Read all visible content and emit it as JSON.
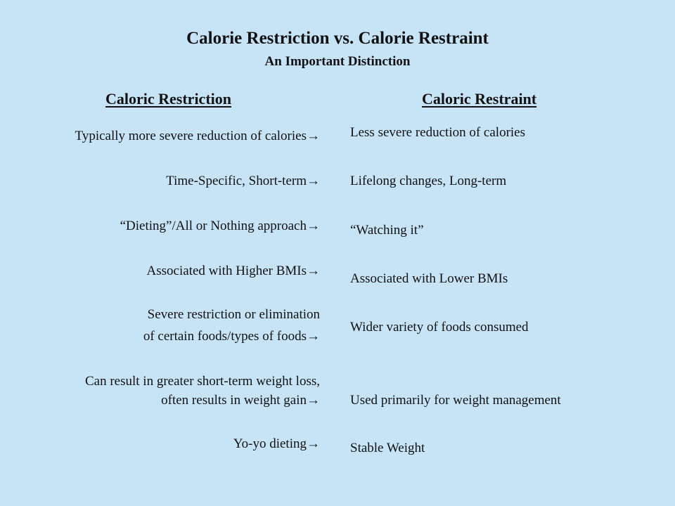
{
  "title": "Calorie Restriction vs. Calorie Restraint",
  "subtitle": "An Important Distinction",
  "columns": {
    "left_header": "Caloric Restriction",
    "right_header": "Caloric Restraint"
  },
  "left_items": [
    "Typically more severe reduction of calories→",
    "Time-Specific, Short-term→",
    "“Dieting”/All or Nothing approach→",
    "Associated with Higher BMIs→",
    "Severe restriction or elimination",
    "of certain foods/types of foods→",
    "Can result in greater short-term weight loss,",
    "often results in weight gain→",
    "Yo-yo dieting→"
  ],
  "right_items": [
    "Less severe reduction of calories",
    "Lifelong changes, Long-term",
    "“Watching it”",
    "Associated with Lower BMIs",
    "Wider variety of foods consumed",
    "Used primarily for weight management",
    "Stable Weight"
  ]
}
